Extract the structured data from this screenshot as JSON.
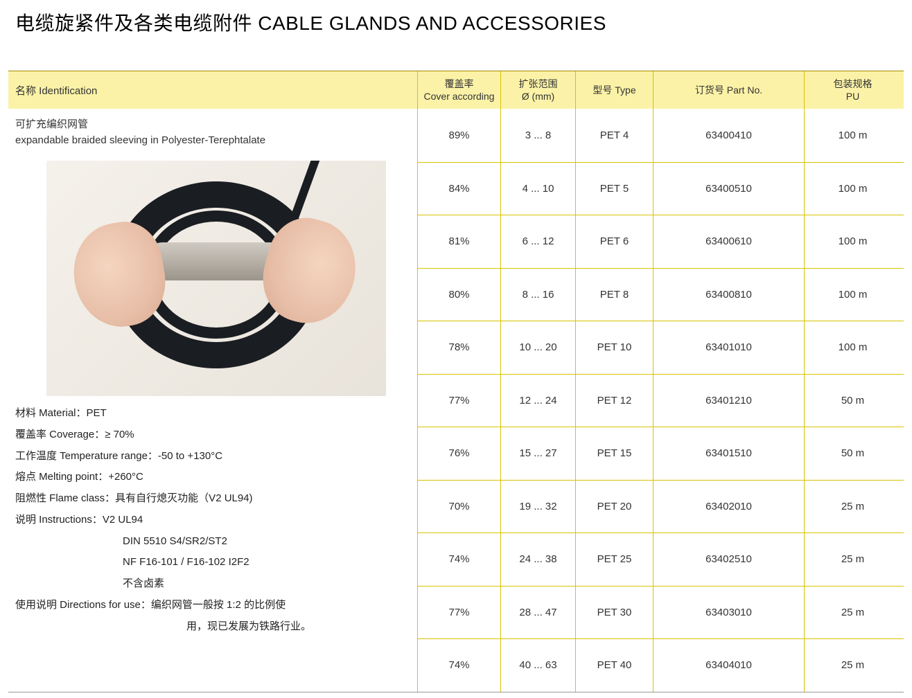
{
  "title": "电缆旋紧件及各类电缆附件  CABLE GLANDS AND ACCESSORIES",
  "headers": {
    "identification": "名称 Identification",
    "cover_cn": "覆盖率",
    "cover_en": "Cover according",
    "exp_cn": "扩张范围",
    "exp_en": "Ø (mm)",
    "type": "型号 Type",
    "partno": "订货号 Part No.",
    "pu_cn": "包装规格",
    "pu_en": "PU"
  },
  "product": {
    "name_cn": "可扩充编织网管",
    "name_en": "expandable braided sleeving in Polyester-Terephtalate"
  },
  "specs": {
    "material": "材料 Material：PET",
    "coverage": "覆盖率 Coverage：≥ 70%",
    "temp": "工作温度 Temperature range：-50 to +130°C",
    "melting": "熔点 Melting point：+260°C",
    "flame": "阻燃性 Flame class：具有自行熄灭功能（V2 UL94)",
    "instr_label": "说明 Instructions：V2 UL94",
    "instr_l2": "DIN 5510 S4/SR2/ST2",
    "instr_l3": "NF F16-101 / F16-102 I2F2",
    "instr_l4": "不含卤素",
    "directions_l1": "使用说明 Directions for use：编织网管一般按 1:2 的比例使",
    "directions_l2": "用，现已发展为铁路行业。"
  },
  "rows": [
    {
      "cover": "89%",
      "exp": "3 ... 8",
      "type": "PET 4",
      "part": "63400410",
      "pu": "100 m"
    },
    {
      "cover": "84%",
      "exp": "4 ... 10",
      "type": "PET 5",
      "part": "63400510",
      "pu": "100 m"
    },
    {
      "cover": "81%",
      "exp": "6 ... 12",
      "type": "PET 6",
      "part": "63400610",
      "pu": "100 m"
    },
    {
      "cover": "80%",
      "exp": "8 ... 16",
      "type": "PET 8",
      "part": "63400810",
      "pu": "100 m"
    },
    {
      "cover": "78%",
      "exp": "10 ... 20",
      "type": "PET 10",
      "part": "63401010",
      "pu": "100 m"
    },
    {
      "cover": "77%",
      "exp": "12 ... 24",
      "type": "PET 12",
      "part": "63401210",
      "pu": "50 m"
    },
    {
      "cover": "76%",
      "exp": "15 ... 27",
      "type": "PET 15",
      "part": "63401510",
      "pu": "50 m"
    },
    {
      "cover": "70%",
      "exp": "19 ... 32",
      "type": "PET 20",
      "part": "63402010",
      "pu": "25 m"
    },
    {
      "cover": "74%",
      "exp": "24 ... 38",
      "type": "PET 25",
      "part": "63402510",
      "pu": "25 m"
    },
    {
      "cover": "77%",
      "exp": "28 ... 47",
      "type": "PET 30",
      "part": "63403010",
      "pu": "25 m"
    },
    {
      "cover": "74%",
      "exp": "40 ... 63",
      "type": "PET 40",
      "part": "63404010",
      "pu": "25 m"
    }
  ],
  "colors": {
    "header_bg": "#fbf2a7",
    "border": "#d8c200",
    "text": "#333333"
  }
}
